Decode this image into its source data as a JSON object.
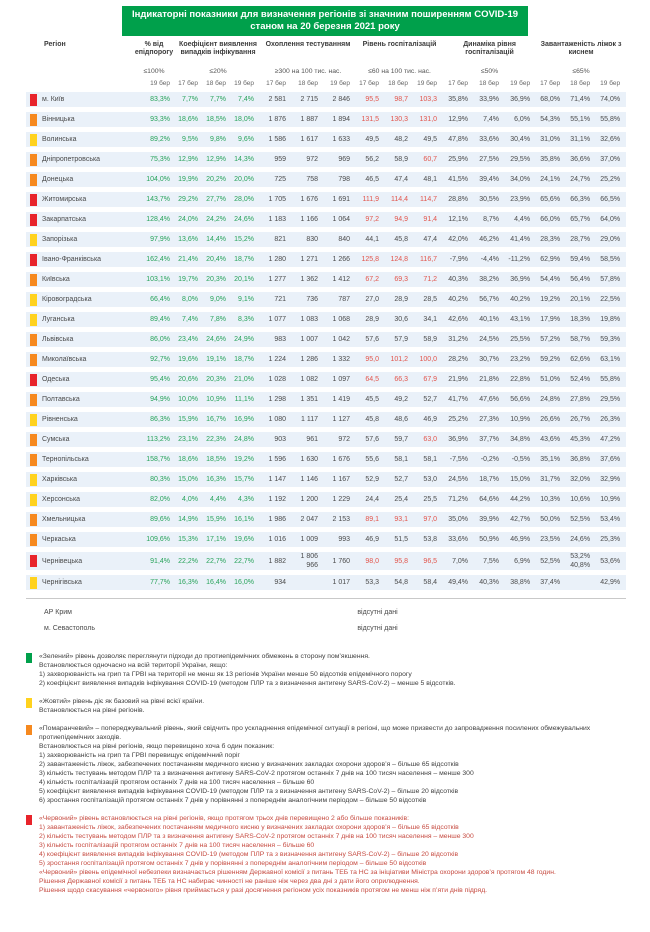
{
  "title": {
    "line1": "Індикаторні показники для визначення регіонів зі значним поширенням COVID-19",
    "line2": "станом на 20 березня 2021 року"
  },
  "colors": {
    "green": "#00a04b",
    "yellow": "#ffd21e",
    "orange": "#f6891f",
    "red": "#e8242b",
    "value_green": "#27a35a",
    "value_red": "#e2544b",
    "row_stripe": "#eaf1f9",
    "legend_red_text": "#c64b41",
    "banner_bg": "#00a04b"
  },
  "table": {
    "region_header": "Регіон",
    "groups": [
      {
        "id": "epid",
        "title": "% від епідпорогу",
        "threshold": "≤100%",
        "dates": [
          "19 бер"
        ]
      },
      {
        "id": "coef",
        "title": "Коефіцієнт виявлення випадків інфікування",
        "threshold": "≤20%",
        "dates": [
          "17 бер",
          "18 бер",
          "19 бер"
        ]
      },
      {
        "id": "test",
        "title": "Охоплення тестуванням",
        "threshold": "≥300 на 100 тис. нас.",
        "dates": [
          "17 бер",
          "18 бер",
          "19 бер"
        ]
      },
      {
        "id": "hosp",
        "title": "Рівень госпіталізацій",
        "threshold": "≤60 на 100 тис. нас.",
        "dates": [
          "17 бер",
          "18 бер",
          "19 бер"
        ]
      },
      {
        "id": "dyn",
        "title": "Динаміка рівня госпіталізацій",
        "threshold": "≤50%",
        "dates": [
          "17 бер",
          "18 бер",
          "19 бер"
        ]
      },
      {
        "id": "beds",
        "title": "Завантаженість ліжок з киснем",
        "threshold": "≤65%",
        "dates": [
          "17 бер",
          "18 бер",
          "19 бер"
        ]
      }
    ],
    "hosp_red_threshold": 60,
    "regions": [
      {
        "name": "м. Київ",
        "level": "red",
        "epid": "83,3%",
        "coef": [
          "7,7%",
          "7,7%",
          "7,4%"
        ],
        "test": [
          "2 581",
          "2 715",
          "2 846"
        ],
        "hosp": [
          "95,5",
          "98,7",
          "103,3"
        ],
        "dyn": [
          "35,8%",
          "33,9%",
          "36,9%"
        ],
        "beds": [
          "68,0%",
          "71,4%",
          "74,0%"
        ]
      },
      {
        "name": "Вінницька",
        "level": "orange",
        "epid": "93,3%",
        "coef": [
          "18,6%",
          "18,5%",
          "18,0%"
        ],
        "test": [
          "1 876",
          "1 887",
          "1 894"
        ],
        "hosp": [
          "131,5",
          "130,3",
          "131,0"
        ],
        "dyn": [
          "12,9%",
          "7,4%",
          "6,0%"
        ],
        "beds": [
          "54,3%",
          "55,1%",
          "55,8%"
        ]
      },
      {
        "name": "Волинська",
        "level": "yellow",
        "epid": "89,2%",
        "coef": [
          "9,5%",
          "9,8%",
          "9,6%"
        ],
        "test": [
          "1 586",
          "1 617",
          "1 633"
        ],
        "hosp": [
          "49,5",
          "48,2",
          "49,5"
        ],
        "dyn": [
          "47,8%",
          "33,6%",
          "30,4%"
        ],
        "beds": [
          "31,0%",
          "31,1%",
          "32,6%"
        ]
      },
      {
        "name": "Дніпропетровська",
        "level": "orange",
        "epid": "75,3%",
        "coef": [
          "12,9%",
          "12,9%",
          "14,3%"
        ],
        "test": [
          "959",
          "972",
          "969"
        ],
        "hosp": [
          "56,2",
          "58,9",
          "60,7"
        ],
        "dyn": [
          "25,9%",
          "27,5%",
          "29,5%"
        ],
        "beds": [
          "35,8%",
          "36,6%",
          "37,0%"
        ]
      },
      {
        "name": "Донецька",
        "level": "orange",
        "epid": "104,0%",
        "coef": [
          "19,9%",
          "20,2%",
          "20,0%"
        ],
        "test": [
          "725",
          "758",
          "798"
        ],
        "hosp": [
          "46,5",
          "47,4",
          "48,1"
        ],
        "dyn": [
          "41,5%",
          "39,4%",
          "34,0%"
        ],
        "beds": [
          "24,1%",
          "24,7%",
          "25,2%"
        ]
      },
      {
        "name": "Житомирська",
        "level": "red",
        "epid": "143,7%",
        "coef": [
          "29,2%",
          "27,7%",
          "28,0%"
        ],
        "test": [
          "1 705",
          "1 676",
          "1 691"
        ],
        "hosp": [
          "111,9",
          "114,4",
          "114,7"
        ],
        "dyn": [
          "28,8%",
          "30,5%",
          "23,9%"
        ],
        "beds": [
          "65,6%",
          "66,3%",
          "66,5%"
        ]
      },
      {
        "name": "Закарпатська",
        "level": "red",
        "epid": "128,4%",
        "coef": [
          "24,0%",
          "24,2%",
          "24,6%"
        ],
        "test": [
          "1 183",
          "1 166",
          "1 064"
        ],
        "hosp": [
          "97,2",
          "94,9",
          "91,4"
        ],
        "dyn": [
          "12,1%",
          "8,7%",
          "4,4%"
        ],
        "beds": [
          "66,0%",
          "65,7%",
          "64,0%"
        ]
      },
      {
        "name": "Запорізька",
        "level": "yellow",
        "epid": "97,9%",
        "coef": [
          "13,6%",
          "14,4%",
          "15,2%"
        ],
        "test": [
          "821",
          "830",
          "840"
        ],
        "hosp": [
          "44,1",
          "45,8",
          "47,4"
        ],
        "dyn": [
          "42,0%",
          "46,2%",
          "41,4%"
        ],
        "beds": [
          "28,3%",
          "28,7%",
          "29,0%"
        ]
      },
      {
        "name": "Івано-Франківська",
        "level": "red",
        "epid": "162,4%",
        "coef": [
          "21,4%",
          "20,4%",
          "18,7%"
        ],
        "test": [
          "1 280",
          "1 271",
          "1 266"
        ],
        "hosp": [
          "125,8",
          "124,8",
          "116,7"
        ],
        "dyn": [
          "-7,9%",
          "-4,4%",
          "-11,2%"
        ],
        "beds": [
          "62,9%",
          "59,4%",
          "58,5%"
        ]
      },
      {
        "name": "Київська",
        "level": "orange",
        "epid": "103,1%",
        "coef": [
          "19,7%",
          "20,3%",
          "20,1%"
        ],
        "test": [
          "1 277",
          "1 362",
          "1 412"
        ],
        "hosp": [
          "67,2",
          "69,3",
          "71,2"
        ],
        "dyn": [
          "40,3%",
          "38,2%",
          "36,9%"
        ],
        "beds": [
          "54,4%",
          "56,4%",
          "57,8%"
        ]
      },
      {
        "name": "Кіровоградська",
        "level": "yellow",
        "epid": "66,4%",
        "coef": [
          "8,0%",
          "9,0%",
          "9,1%"
        ],
        "test": [
          "721",
          "736",
          "787"
        ],
        "hosp": [
          "27,0",
          "28,9",
          "28,5"
        ],
        "dyn": [
          "40,2%",
          "56,7%",
          "40,2%"
        ],
        "beds": [
          "19,2%",
          "20,1%",
          "22,5%"
        ]
      },
      {
        "name": "Луганська",
        "level": "yellow",
        "epid": "89,4%",
        "coef": [
          "7,4%",
          "7,8%",
          "8,3%"
        ],
        "test": [
          "1 077",
          "1 083",
          "1 068"
        ],
        "hosp": [
          "28,9",
          "30,6",
          "34,1"
        ],
        "dyn": [
          "42,6%",
          "40,1%",
          "43,1%"
        ],
        "beds": [
          "17,9%",
          "18,3%",
          "19,8%"
        ]
      },
      {
        "name": "Львівська",
        "level": "orange",
        "epid": "86,0%",
        "coef": [
          "23,4%",
          "24,6%",
          "24,9%"
        ],
        "test": [
          "983",
          "1 007",
          "1 042"
        ],
        "hosp": [
          "57,6",
          "57,9",
          "58,9"
        ],
        "dyn": [
          "31,2%",
          "24,5%",
          "25,5%"
        ],
        "beds": [
          "57,2%",
          "58,7%",
          "59,3%"
        ]
      },
      {
        "name": "Миколаївська",
        "level": "orange",
        "epid": "92,7%",
        "coef": [
          "19,6%",
          "19,1%",
          "18,7%"
        ],
        "test": [
          "1 224",
          "1 286",
          "1 332"
        ],
        "hosp": [
          "95,0",
          "101,2",
          "100,0"
        ],
        "dyn": [
          "28,2%",
          "30,7%",
          "23,2%"
        ],
        "beds": [
          "59,2%",
          "62,6%",
          "63,1%"
        ]
      },
      {
        "name": "Одеська",
        "level": "red",
        "epid": "95,4%",
        "coef": [
          "20,6%",
          "20,3%",
          "21,0%"
        ],
        "test": [
          "1 028",
          "1 082",
          "1 097"
        ],
        "hosp": [
          "64,5",
          "66,3",
          "67,9"
        ],
        "dyn": [
          "21,9%",
          "21,8%",
          "22,8%"
        ],
        "beds": [
          "51,0%",
          "52,4%",
          "55,8%"
        ]
      },
      {
        "name": "Полтавська",
        "level": "orange",
        "epid": "94,9%",
        "coef": [
          "10,0%",
          "10,9%",
          "11,1%"
        ],
        "test": [
          "1 298",
          "1 351",
          "1 419"
        ],
        "hosp": [
          "45,5",
          "49,2",
          "52,7"
        ],
        "dyn": [
          "41,7%",
          "47,6%",
          "56,6%"
        ],
        "beds": [
          "24,8%",
          "27,8%",
          "29,5%"
        ]
      },
      {
        "name": "Рівненська",
        "level": "yellow",
        "epid": "86,3%",
        "coef": [
          "15,9%",
          "16,7%",
          "16,9%"
        ],
        "test": [
          "1 080",
          "1 117",
          "1 127"
        ],
        "hosp": [
          "45,8",
          "48,6",
          "46,9"
        ],
        "dyn": [
          "25,2%",
          "27,3%",
          "10,9%"
        ],
        "beds": [
          "26,6%",
          "26,7%",
          "26,3%"
        ]
      },
      {
        "name": "Сумська",
        "level": "orange",
        "epid": "113,2%",
        "coef": [
          "23,1%",
          "22,3%",
          "24,8%"
        ],
        "test": [
          "903",
          "961",
          "972"
        ],
        "hosp": [
          "57,6",
          "59,7",
          "63,0"
        ],
        "dyn": [
          "36,9%",
          "37,7%",
          "34,8%"
        ],
        "beds": [
          "43,6%",
          "45,3%",
          "47,2%"
        ]
      },
      {
        "name": "Тернопільська",
        "level": "orange",
        "epid": "158,7%",
        "coef": [
          "18,6%",
          "18,5%",
          "19,2%"
        ],
        "test": [
          "1 596",
          "1 630",
          "1 676"
        ],
        "hosp": [
          "55,6",
          "58,1",
          "58,1"
        ],
        "dyn": [
          "-7,5%",
          "-0,2%",
          "-0,5%"
        ],
        "beds": [
          "35,1%",
          "36,8%",
          "37,6%"
        ]
      },
      {
        "name": "Харківська",
        "level": "yellow",
        "epid": "80,3%",
        "coef": [
          "15,0%",
          "16,3%",
          "15,7%"
        ],
        "test": [
          "1 147",
          "1 146",
          "1 167"
        ],
        "hosp": [
          "52,9",
          "52,7",
          "53,0"
        ],
        "dyn": [
          "24,5%",
          "18,7%",
          "15,0%"
        ],
        "beds": [
          "31,7%",
          "32,0%",
          "32,9%"
        ]
      },
      {
        "name": "Херсонська",
        "level": "yellow",
        "epid": "82,0%",
        "coef": [
          "4,0%",
          "4,4%",
          "4,3%"
        ],
        "test": [
          "1 192",
          "1 200",
          "1 229"
        ],
        "hosp": [
          "24,4",
          "25,4",
          "25,5"
        ],
        "dyn": [
          "71,2%",
          "64,6%",
          "44,2%"
        ],
        "beds": [
          "10,3%",
          "10,6%",
          "10,9%"
        ]
      },
      {
        "name": "Хмельницька",
        "level": "orange",
        "epid": "89,6%",
        "coef": [
          "14,9%",
          "15,9%",
          "16,1%"
        ],
        "test": [
          "1 986",
          "2 047",
          "2 153"
        ],
        "hosp": [
          "89,1",
          "93,1",
          "97,0"
        ],
        "dyn": [
          "35,0%",
          "39,9%",
          "42,7%"
        ],
        "beds": [
          "50,0%",
          "52,5%",
          "53,4%"
        ]
      },
      {
        "name": "Черкаська",
        "level": "orange",
        "epid": "109,6%",
        "coef": [
          "15,3%",
          "17,1%",
          "19,6%"
        ],
        "test": [
          "1 016",
          "1 009",
          "993"
        ],
        "hosp": [
          "46,9",
          "51,5",
          "53,8"
        ],
        "dyn": [
          "33,6%",
          "50,9%",
          "46,9%"
        ],
        "beds": [
          "23,5%",
          "24,6%",
          "25,3%"
        ]
      },
      {
        "name": "Чернівецька",
        "level": "red",
        "epid": "91,4%",
        "coef": [
          "22,2%",
          "22,7%",
          "22,7%"
        ],
        "test": [
          "1 882",
          "1 806\n966",
          "1 760"
        ],
        "hosp": [
          "98,0",
          "95,8",
          "96,5"
        ],
        "dyn": [
          "7,0%",
          "7,5%",
          "6,9%"
        ],
        "beds": [
          "52,5%",
          "53,2%\n40,8%",
          "53,6%"
        ]
      },
      {
        "name": "Чернігівська",
        "level": "yellow",
        "epid": "77,7%",
        "coef": [
          "16,3%",
          "16,4%",
          "16,0%"
        ],
        "test": [
          "934",
          "",
          "1 017"
        ],
        "hosp": [
          "53,3",
          "54,8",
          "58,4"
        ],
        "dyn": [
          "49,4%",
          "40,3%",
          "38,8%"
        ],
        "beds": [
          "37,4%",
          "",
          "42,9%"
        ]
      }
    ],
    "no_data": [
      {
        "name": "АР Крим",
        "note": "відсутні дані"
      },
      {
        "name": "м. Севастополь",
        "note": "відсутні дані"
      }
    ]
  },
  "legend": [
    {
      "level": "green",
      "lines": [
        "«Зелений» рівень дозволяє переглянути підходи до протиепідемічних обмежень в сторону пом’якшення.",
        "Встановлюється одночасно на всій території України, якщо:",
        "1) захворюваність на грип та ГРВІ на території не менш як 13 регіонів України менше 50 відсотків епідемічного порогу",
        "2) коефіцієнт виявлення випадків інфікування COVID-19 (методом ПЛР та з визначення антигену SARS-CoV-2) – менше 5 відсотків."
      ]
    },
    {
      "level": "yellow",
      "lines": [
        "«Жовтий» рівень діє як базовий на рівні всієї країни.",
        "Встановлюється на рівні регіонів."
      ]
    },
    {
      "level": "orange",
      "lines": [
        "«Помаранчевий» – попереджувальний рівень, який свідчить про ускладнення епідемічної ситуації в регіоні, що може призвести до запровадження посилених обмежувальних",
        "протиепідемічних заходів.",
        "Встановлюється на рівні регіонів, якщо перевищено хоча б один показник:",
        "1) захворюваність на грип та ГРВІ перевищує епідемічний поріг",
        "2) завантаженість ліжок, забезпечених постачанням медичного кисню у визначених закладах охорони здоров’я – більше 65 відсотків",
        "3) кількість тестувань методом ПЛР та з визначення антигену SARS-CoV-2 протягом останніх 7 днів на 100 тисяч населення – менше 300",
        "4) кількість госпіталізацій протягом останніх 7 днів на 100 тисяч населення – більше 60",
        "5) коефіцієнт виявлення випадків інфікування COVID-19 (методом ПЛР та з визначення антигену SARS-CoV-2) – більше 20 відсотків",
        "6) зростання госпіталізацій протягом останніх 7 днів у порівнянні з попереднім аналогічним періодом – більше 50 відсотків"
      ]
    },
    {
      "level": "red",
      "lines": [
        "«Червоний» рівень встановлюється на рівні регіонів, якщо протягом трьох днів перевищено 2 або більше показників:",
        "1) завантаженість ліжок, забезпечених постачанням медичного кисню у визначених закладах охорони здоров’я – більше 65 відсотків",
        "2) кількість тестувань методом ПЛР та з визначення антигену SARS-CoV-2 протягом останніх 7 днів на 100 тисяч населення – менше 300",
        "3) кількість госпіталізацій протягом останніх 7 днів на 100 тисяч населення – більше 60",
        "4) коефіцієнт виявлення випадків інфікування COVID-19 (методом ПЛР та з визначення антигену SARS-CoV-2) – більше 20 відсотків",
        "5) зростання госпіталізацій протягом останніх 7 днів у порівнянні з попереднім аналогічним періодом – більше 50 відсотків",
        "«Червоний» рівень епідемічної небезпеки визначається рішенням Державної комісії з питань ТЕБ та НС за ініціативи Міністра охорони здоров’я протягом 48 годин.",
        "Рішення Державної комісії з питань ТЕБ та НС набирає чинності не раніше ніж через два дні з дати його оприлюднення.",
        "Рішення щодо скасування «червоного» рівня приймається у разі досягнення регіоном усіх показників протягом не менш ніж п’яти днів підряд."
      ]
    }
  ]
}
